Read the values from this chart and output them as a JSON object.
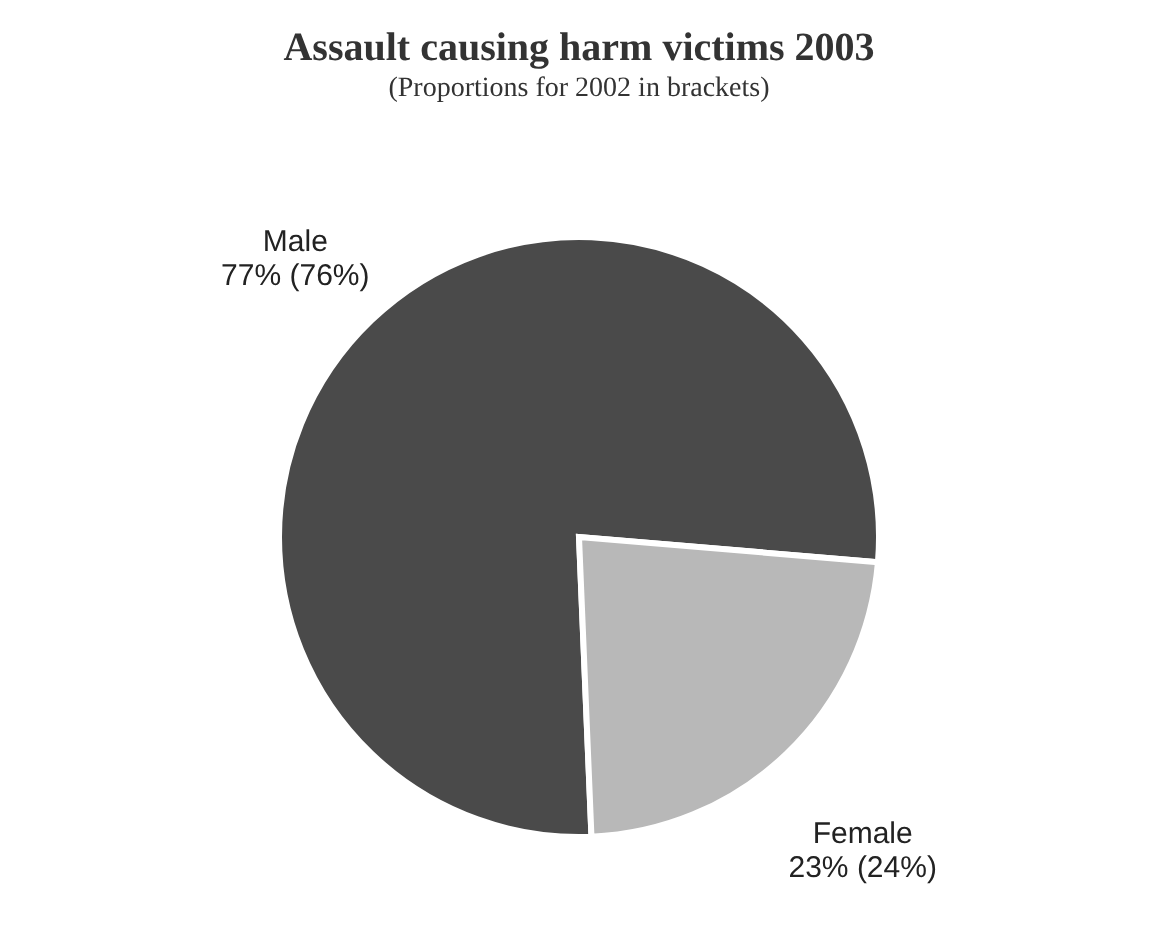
{
  "chart_data": {
    "type": "pie",
    "title": "Assault causing harm victims 2003",
    "subtitle": "(Proportions for 2002 in brackets)",
    "categories": [
      "Male",
      "Female"
    ],
    "values": [
      77,
      23
    ],
    "colors": [
      "#4a4a4a",
      "#b8b8b8"
    ],
    "value_labels": [
      "77% (76%)",
      "23% (24%)"
    ]
  }
}
